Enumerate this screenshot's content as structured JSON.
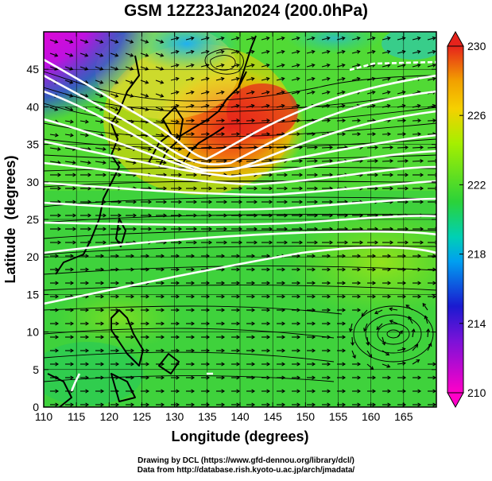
{
  "title": "GSM 12Z23Jan2024 (200.0hPa)",
  "credits": {
    "line1": "Drawing by DCL (https://www.gfd-dennou.org/library/dcl/)",
    "line2": "Data from http://database.rish.kyoto-u.ac.jp/arch/jmadata/"
  },
  "chart_data": {
    "type": "heatmap",
    "title": "GSM 12Z23Jan2024 (200.0hPa)",
    "xlabel": "Longitude (degrees)",
    "ylabel": "Latitude  (degrees)",
    "xlim": [
      110,
      170
    ],
    "ylim": [
      0,
      50
    ],
    "x_ticks": [
      110,
      115,
      120,
      125,
      130,
      135,
      140,
      145,
      150,
      155,
      160,
      165
    ],
    "y_ticks": [
      0,
      5,
      10,
      15,
      20,
      25,
      30,
      35,
      40,
      45
    ],
    "grid": true,
    "colorbar": {
      "min": 210,
      "max": 230,
      "tick_labels": [
        210,
        214,
        218,
        222,
        226,
        230
      ],
      "colors": [
        "#ff00c8",
        "#1a1ad0",
        "#00b4e6",
        "#2ad23a",
        "#a6ef00",
        "#f2a000",
        "#e6231c"
      ]
    },
    "overlays": [
      "streamlines",
      "wind vectors",
      "white contours",
      "coastlines"
    ]
  }
}
